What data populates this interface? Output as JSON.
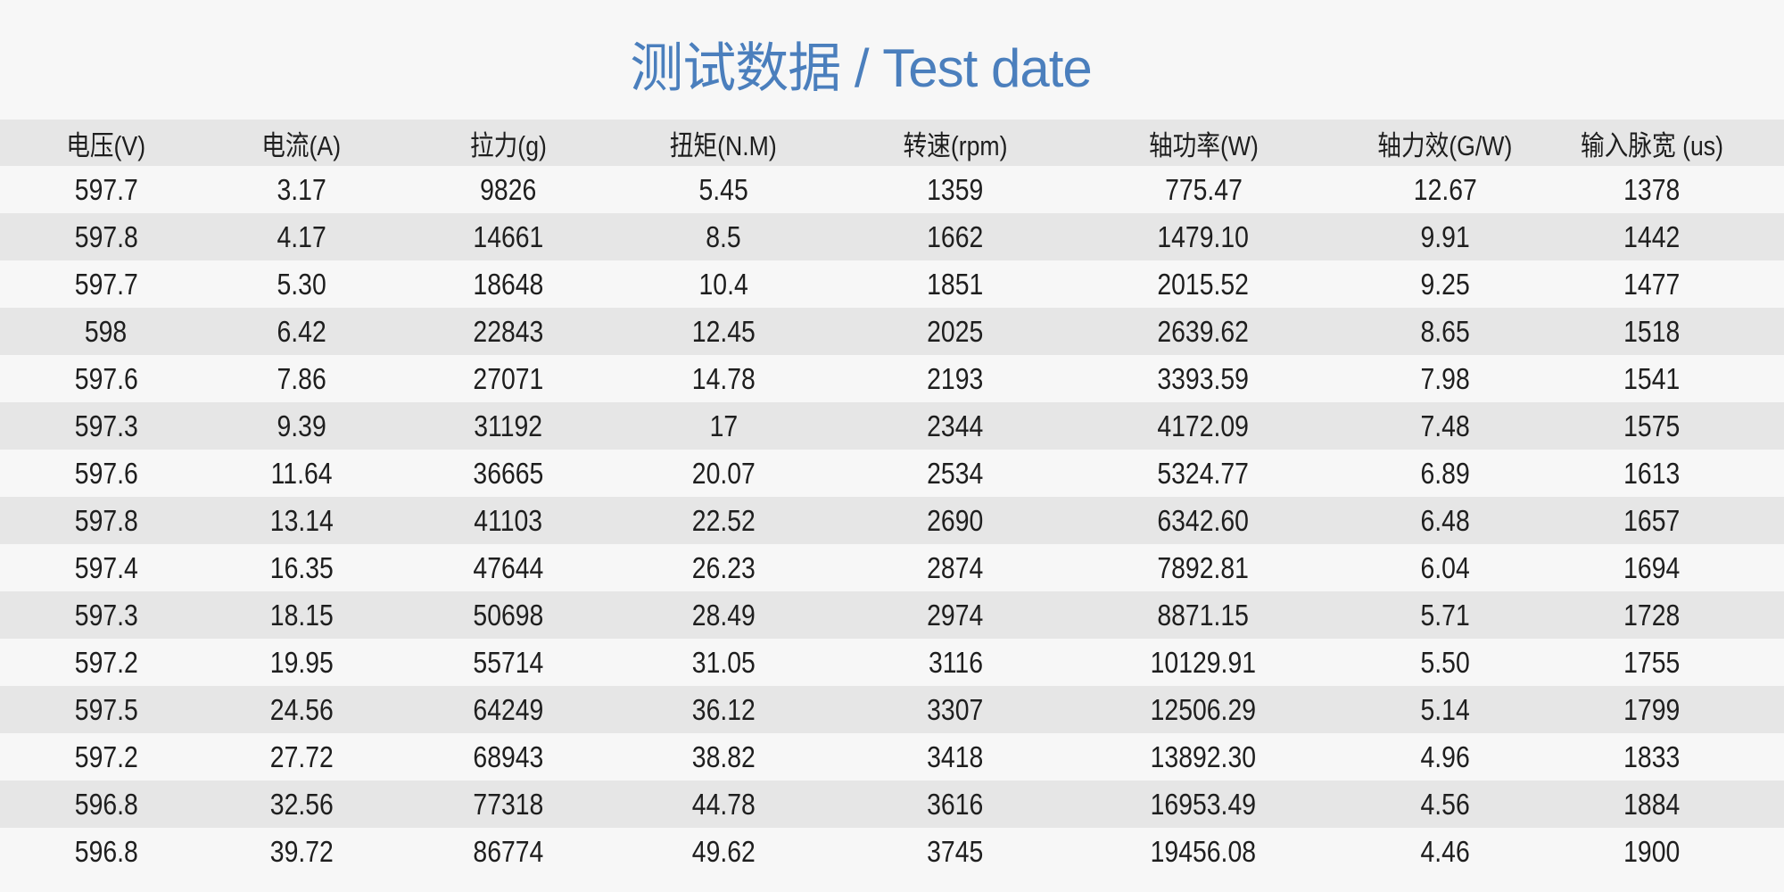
{
  "title": "测试数据 / Test date",
  "colors": {
    "title": "#4b7fbd",
    "background": "#f7f7f7",
    "stripe": "#e6e6e6"
  },
  "table": {
    "headers": [
      "电压(V)",
      "电流(A)",
      "拉力(g)",
      "扭矩(N.M)",
      "转速(rpm)",
      "轴功率(W)",
      "轴力效(G/W)",
      "输入脉宽 (us)"
    ],
    "rows": [
      [
        "597.7",
        "3.17",
        "9826",
        "5.45",
        "1359",
        "775.47",
        "12.67",
        "1378"
      ],
      [
        "597.8",
        "4.17",
        "14661",
        "8.5",
        "1662",
        "1479.10",
        "9.91",
        "1442"
      ],
      [
        "597.7",
        "5.30",
        "18648",
        "10.4",
        "1851",
        "2015.52",
        "9.25",
        "1477"
      ],
      [
        "598",
        "6.42",
        "22843",
        "12.45",
        "2025",
        "2639.62",
        "8.65",
        "1518"
      ],
      [
        "597.6",
        "7.86",
        "27071",
        "14.78",
        "2193",
        "3393.59",
        "7.98",
        "1541"
      ],
      [
        "597.3",
        "9.39",
        "31192",
        "17",
        "2344",
        "4172.09",
        "7.48",
        "1575"
      ],
      [
        "597.6",
        "11.64",
        "36665",
        "20.07",
        "2534",
        "5324.77",
        "6.89",
        "1613"
      ],
      [
        "597.8",
        "13.14",
        "41103",
        "22.52",
        "2690",
        "6342.60",
        "6.48",
        "1657"
      ],
      [
        "597.4",
        "16.35",
        "47644",
        "26.23",
        "2874",
        "7892.81",
        "6.04",
        "1694"
      ],
      [
        "597.3",
        "18.15",
        "50698",
        "28.49",
        "2974",
        "8871.15",
        "5.71",
        "1728"
      ],
      [
        "597.2",
        "19.95",
        "55714",
        "31.05",
        "3116",
        "10129.91",
        "5.50",
        "1755"
      ],
      [
        "597.5",
        "24.56",
        "64249",
        "36.12",
        "3307",
        "12506.29",
        "5.14",
        "1799"
      ],
      [
        "597.2",
        "27.72",
        "68943",
        "38.82",
        "3418",
        "13892.30",
        "4.96",
        "1833"
      ],
      [
        "596.8",
        "32.56",
        "77318",
        "44.78",
        "3616",
        "16953.49",
        "4.56",
        "1884"
      ],
      [
        "596.8",
        "39.72",
        "86774",
        "49.62",
        "3745",
        "19456.08",
        "4.46",
        "1900"
      ]
    ]
  }
}
